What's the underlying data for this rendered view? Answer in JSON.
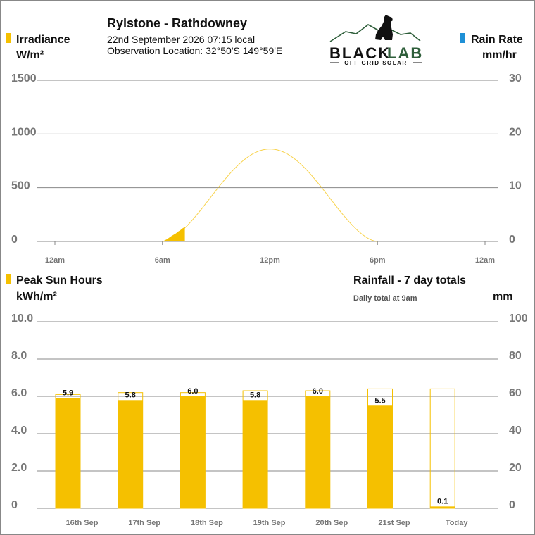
{
  "header": {
    "station": "Rylstone - Rathdowney",
    "datetime": "22nd September 2026  07:15 local",
    "location": "Observation Location:  32°50'S 149°59'E"
  },
  "logo": {
    "brand_black": "BLACK",
    "brand_lab": "LAB",
    "tagline": "OFF GRID SOLAR"
  },
  "colors": {
    "irradiance": "#f5c000",
    "rain": "#1e90d6",
    "accent": "#2e5e3a",
    "grid": "#888888"
  },
  "chart_data": [
    {
      "type": "area",
      "left_axis": {
        "title": "Irradiance",
        "unit": "W/m²",
        "ticks": [
          "1500",
          "1000",
          "500",
          "0"
        ],
        "range": [
          0,
          1500
        ]
      },
      "right_axis": {
        "title": "Rain Rate",
        "unit": "mm/hr",
        "ticks": [
          "30",
          "20",
          "10",
          "0"
        ],
        "range": [
          0,
          30
        ]
      },
      "x_ticks": [
        "12am",
        "6am",
        "12pm",
        "6pm",
        "12am"
      ],
      "x_range_hours": [
        0,
        24
      ],
      "clear_sky_curve": {
        "sunrise_hour": 6,
        "sunset_hour": 18,
        "peak": 860
      },
      "irradiance_series": {
        "x": [
          6.0,
          6.25,
          6.5,
          6.75,
          6.9,
          7.0,
          7.1,
          7.2,
          7.25
        ],
        "y": [
          0,
          20,
          50,
          75,
          95,
          105,
          120,
          130,
          135
        ]
      },
      "rain_rate_series": {
        "x": [],
        "y": []
      }
    },
    {
      "type": "bar",
      "left_axis": {
        "title": "Peak Sun Hours",
        "unit": "kWh/m²",
        "ticks": [
          "10.0",
          "8.0",
          "6.0",
          "4.0",
          "2.0",
          "0"
        ],
        "range": [
          0,
          10
        ]
      },
      "right_axis": {
        "title": "Rainfall - 7 day totals",
        "subtitle": "Daily total at 9am",
        "unit": "mm",
        "ticks": [
          "100",
          "80",
          "60",
          "40",
          "20",
          "0"
        ],
        "range": [
          0,
          100
        ]
      },
      "categories": [
        "16th Sep",
        "17th Sep",
        "18th Sep",
        "19th Sep",
        "20th Sep",
        "21st Sep",
        "Today"
      ],
      "psh_values": [
        5.9,
        5.8,
        6.0,
        5.8,
        6.0,
        5.5,
        0.1
      ],
      "psh_labels": [
        "5.9",
        "5.8",
        "6.0",
        "5.8",
        "6.0",
        "5.5",
        "0.1"
      ],
      "clear_sky_psh": [
        6.1,
        6.2,
        6.2,
        6.3,
        6.3,
        6.4,
        6.4
      ],
      "rainfall_mm": [
        0,
        0,
        0,
        0,
        0,
        0,
        0
      ]
    }
  ]
}
